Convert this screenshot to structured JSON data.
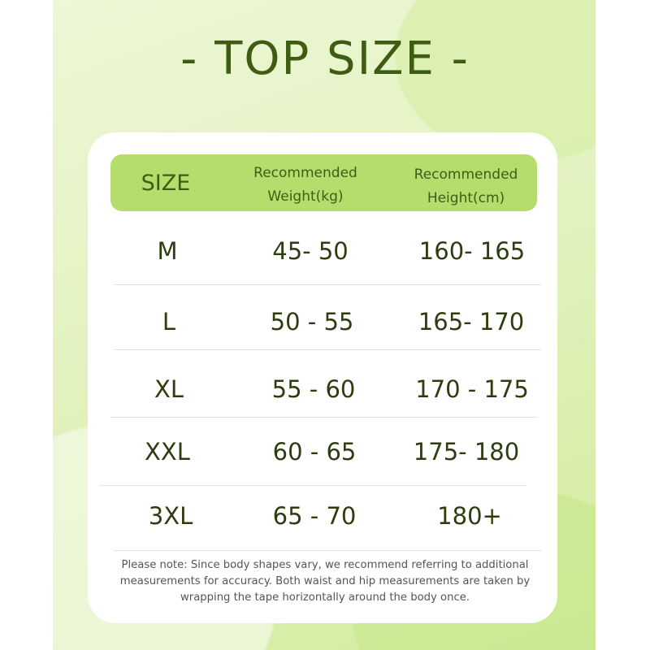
{
  "title": "- TOP SIZE -",
  "colors": {
    "header_bg": "#b6dc6e",
    "text_green": "#3f5d12",
    "background": "#e2f2bf"
  },
  "table": {
    "headers": [
      "SIZE",
      "Recommended Weight(kg)",
      "Recommended Height(cm)"
    ],
    "header_lines": {
      "weight": [
        "Recommended",
        "Weight(kg)"
      ],
      "height": [
        "Recommended",
        "Height(cm)"
      ]
    },
    "rows": [
      {
        "size": "M",
        "weight": "45- 50",
        "height": "160- 165"
      },
      {
        "size": "L",
        "weight": "50 - 55",
        "height": "165- 170"
      },
      {
        "size": "XL",
        "weight": "55 - 60",
        "height": "170 - 175"
      },
      {
        "size": "XXL",
        "weight": "60 - 65",
        "height": "175- 180"
      },
      {
        "size": "3XL",
        "weight": "65 - 70",
        "height": "180+"
      }
    ]
  },
  "note": "Please note: Since body shapes vary, we recommend referring to additional measurements for accuracy. Both waist and hip measurements are taken by wrapping the tape horizontally around the body once."
}
